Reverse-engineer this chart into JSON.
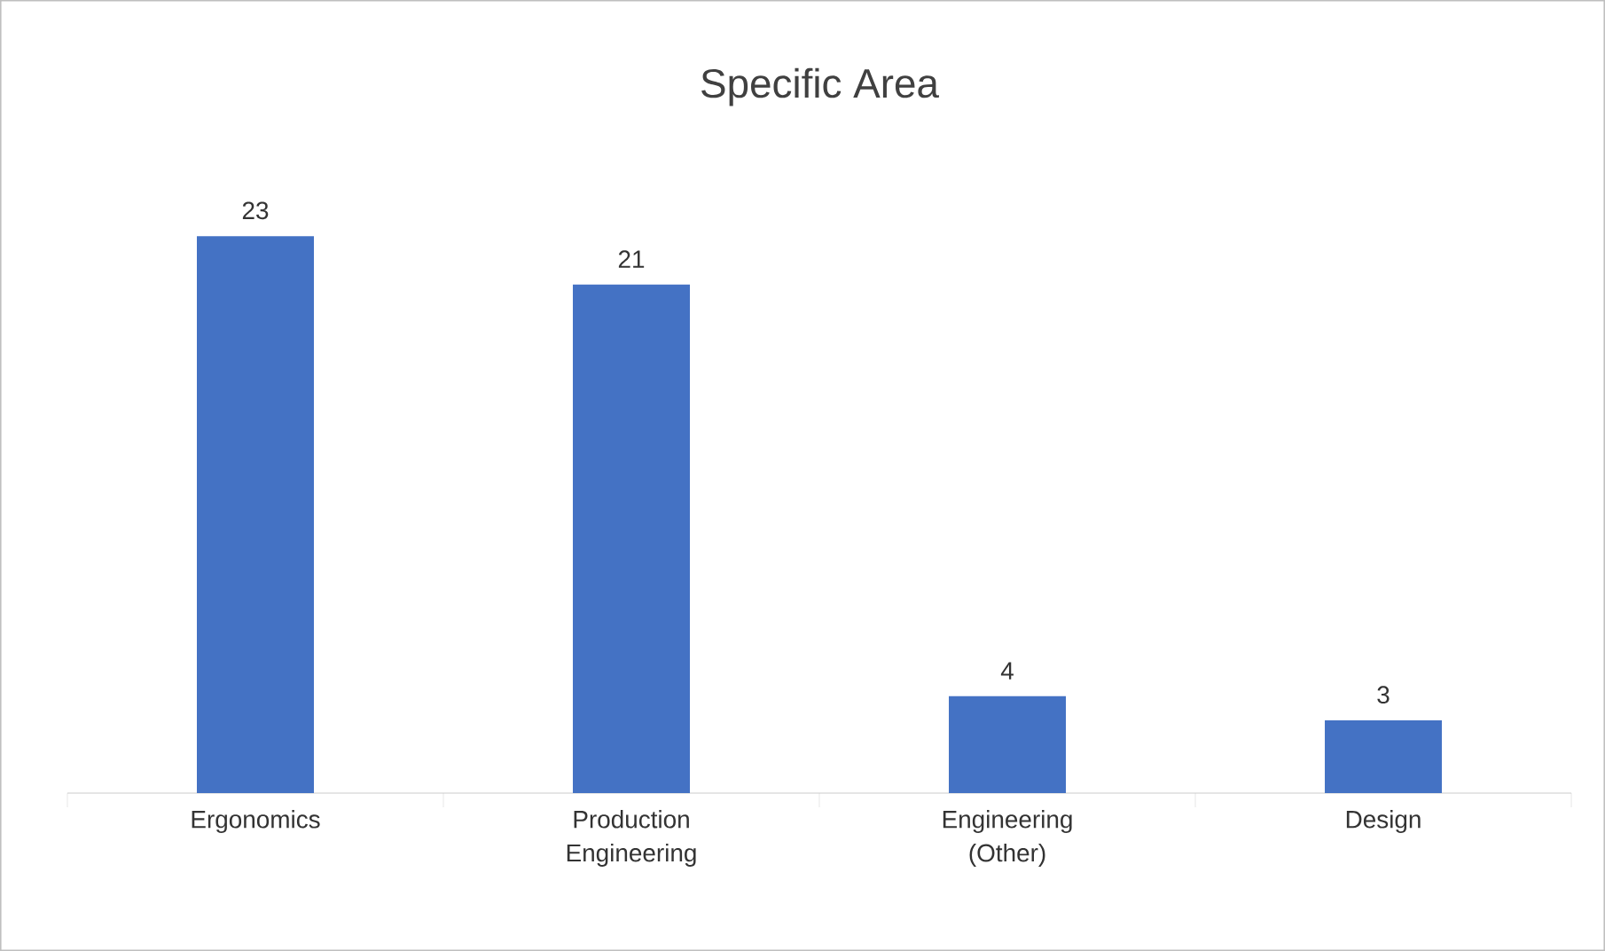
{
  "chart_data": {
    "type": "bar",
    "title": "Specific Area",
    "categories": [
      "Ergonomics",
      "Production Engineering",
      "Engineering (Other)",
      "Design"
    ],
    "values": [
      23,
      21,
      4,
      3
    ],
    "color": "#4472c4",
    "data_labels": true
  }
}
